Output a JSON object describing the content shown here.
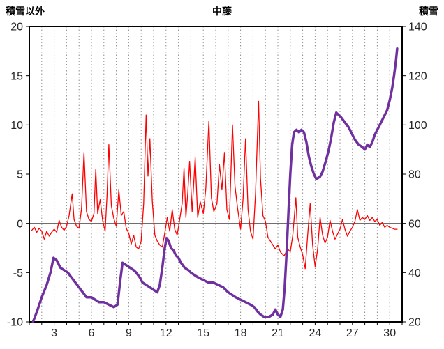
{
  "header": {
    "left_axis_title": "積雪以外",
    "chart_title": "中藤",
    "right_axis_title": "積雪"
  },
  "colors": {
    "temp_series": "#ff0000",
    "snow_series": "#7030a0",
    "frame": "#000000",
    "gridline": "#8c8c8c",
    "zero_line": "#595959",
    "tick_text": "#262626"
  },
  "chart_data": {
    "type": "line",
    "title": "中藤",
    "xlabel": "",
    "left_axis": {
      "label": "積雪以外",
      "min": -10,
      "max": 20,
      "ticks": [
        20,
        15,
        10,
        5,
        0,
        -5,
        -10
      ]
    },
    "right_axis": {
      "label": "積雪",
      "min": 20,
      "max": 140,
      "ticks": [
        140,
        120,
        100,
        80,
        60,
        40,
        20
      ]
    },
    "x_axis": {
      "min": 1,
      "max": 31,
      "gridline_interval": 1,
      "tick_labels": [
        3,
        6,
        9,
        12,
        15,
        18,
        21,
        24,
        27,
        30
      ]
    },
    "zero_line": true,
    "legend": "none",
    "series": [
      {
        "name": "積雪以外",
        "axis": "left",
        "color": "#ff0000",
        "width": 1.3,
        "points": [
          [
            1.2,
            -0.7
          ],
          [
            1.4,
            -0.4
          ],
          [
            1.6,
            -0.9
          ],
          [
            1.8,
            -0.5
          ],
          [
            2.0,
            -0.8
          ],
          [
            2.2,
            -1.6
          ],
          [
            2.4,
            -0.8
          ],
          [
            2.6,
            -1.3
          ],
          [
            2.8,
            -0.9
          ],
          [
            3.0,
            -0.6
          ],
          [
            3.2,
            -0.9
          ],
          [
            3.4,
            0.3
          ],
          [
            3.6,
            -0.4
          ],
          [
            3.8,
            -0.7
          ],
          [
            4.0,
            -0.3
          ],
          [
            4.2,
            0.8
          ],
          [
            4.45,
            3.0
          ],
          [
            4.6,
            0.4
          ],
          [
            4.8,
            -0.3
          ],
          [
            5.0,
            -0.5
          ],
          [
            5.2,
            1.5
          ],
          [
            5.4,
            7.2
          ],
          [
            5.6,
            1.2
          ],
          [
            5.8,
            0.4
          ],
          [
            6.0,
            0.2
          ],
          [
            6.2,
            1.0
          ],
          [
            6.35,
            5.5
          ],
          [
            6.5,
            1.0
          ],
          [
            6.7,
            2.4
          ],
          [
            6.9,
            0.3
          ],
          [
            7.1,
            -0.8
          ],
          [
            7.25,
            2.8
          ],
          [
            7.4,
            8.0
          ],
          [
            7.6,
            1.8
          ],
          [
            7.8,
            0.5
          ],
          [
            8.0,
            -0.3
          ],
          [
            8.2,
            3.4
          ],
          [
            8.4,
            0.8
          ],
          [
            8.6,
            1.2
          ],
          [
            8.8,
            -0.5
          ],
          [
            9.0,
            -1.0
          ],
          [
            9.2,
            -2.1
          ],
          [
            9.4,
            -1.2
          ],
          [
            9.6,
            -2.4
          ],
          [
            9.8,
            -2.6
          ],
          [
            10.0,
            -1.8
          ],
          [
            10.2,
            2.0
          ],
          [
            10.4,
            11.0
          ],
          [
            10.55,
            4.8
          ],
          [
            10.7,
            8.6
          ],
          [
            10.9,
            2.2
          ],
          [
            11.1,
            -1.2
          ],
          [
            11.3,
            -1.8
          ],
          [
            11.5,
            -2.2
          ],
          [
            11.7,
            -2.4
          ],
          [
            11.9,
            -1.0
          ],
          [
            12.1,
            0.6
          ],
          [
            12.3,
            -0.8
          ],
          [
            12.5,
            1.4
          ],
          [
            12.7,
            -0.6
          ],
          [
            12.9,
            -1.2
          ],
          [
            13.1,
            0.4
          ],
          [
            13.3,
            2.0
          ],
          [
            13.45,
            5.6
          ],
          [
            13.6,
            0.6
          ],
          [
            13.75,
            3.0
          ],
          [
            13.9,
            6.3
          ],
          [
            14.1,
            1.2
          ],
          [
            14.35,
            6.7
          ],
          [
            14.55,
            0.6
          ],
          [
            14.75,
            2.2
          ],
          [
            15.0,
            1.0
          ],
          [
            15.2,
            3.5
          ],
          [
            15.45,
            10.4
          ],
          [
            15.65,
            2.6
          ],
          [
            15.85,
            1.2
          ],
          [
            16.1,
            2.0
          ],
          [
            16.3,
            6.0
          ],
          [
            16.5,
            3.4
          ],
          [
            16.7,
            7.2
          ],
          [
            16.9,
            1.4
          ],
          [
            17.1,
            0.4
          ],
          [
            17.35,
            10.0
          ],
          [
            17.55,
            3.8
          ],
          [
            17.75,
            1.6
          ],
          [
            18.0,
            -0.6
          ],
          [
            18.2,
            2.5
          ],
          [
            18.4,
            8.6
          ],
          [
            18.6,
            1.4
          ],
          [
            18.8,
            -0.8
          ],
          [
            19.0,
            -1.6
          ],
          [
            19.2,
            3.0
          ],
          [
            19.45,
            12.4
          ],
          [
            19.6,
            4.6
          ],
          [
            19.8,
            0.8
          ],
          [
            20.0,
            0.2
          ],
          [
            20.2,
            -1.4
          ],
          [
            20.5,
            -2.0
          ],
          [
            20.8,
            -2.6
          ],
          [
            21.0,
            -2.2
          ],
          [
            21.2,
            -2.9
          ],
          [
            21.5,
            -3.3
          ],
          [
            21.8,
            -2.6
          ],
          [
            22.0,
            -2.9
          ],
          [
            22.2,
            -1.2
          ],
          [
            22.45,
            2.6
          ],
          [
            22.6,
            -1.4
          ],
          [
            22.8,
            -2.4
          ],
          [
            23.0,
            -3.2
          ],
          [
            23.2,
            -4.6
          ],
          [
            23.4,
            -1.2
          ],
          [
            23.6,
            2.0
          ],
          [
            23.8,
            -2.2
          ],
          [
            24.0,
            -4.4
          ],
          [
            24.2,
            -2.6
          ],
          [
            24.4,
            0.6
          ],
          [
            24.6,
            -1.2
          ],
          [
            24.8,
            -2.0
          ],
          [
            25.0,
            -1.4
          ],
          [
            25.2,
            0.3
          ],
          [
            25.4,
            -0.8
          ],
          [
            25.6,
            -1.6
          ],
          [
            25.8,
            -1.1
          ],
          [
            26.0,
            -0.6
          ],
          [
            26.2,
            0.4
          ],
          [
            26.4,
            -0.6
          ],
          [
            26.6,
            -1.3
          ],
          [
            26.8,
            -0.8
          ],
          [
            27.0,
            -0.4
          ],
          [
            27.2,
            0.2
          ],
          [
            27.4,
            1.4
          ],
          [
            27.6,
            0.3
          ],
          [
            27.8,
            0.6
          ],
          [
            28.0,
            0.4
          ],
          [
            28.2,
            0.8
          ],
          [
            28.4,
            0.3
          ],
          [
            28.6,
            0.6
          ],
          [
            28.8,
            0.2
          ],
          [
            29.0,
            0.4
          ],
          [
            29.2,
            -0.2
          ],
          [
            29.4,
            0.1
          ],
          [
            29.6,
            -0.4
          ],
          [
            29.8,
            -0.2
          ],
          [
            30.0,
            -0.4
          ],
          [
            30.2,
            -0.5
          ],
          [
            30.4,
            -0.6
          ],
          [
            30.6,
            -0.6
          ]
        ]
      },
      {
        "name": "積雪",
        "axis": "right",
        "color": "#7030a0",
        "width": 3.5,
        "points": [
          [
            1.3,
            20
          ],
          [
            1.6,
            24
          ],
          [
            2.0,
            30
          ],
          [
            2.4,
            35
          ],
          [
            2.7,
            40
          ],
          [
            2.95,
            46
          ],
          [
            3.2,
            45
          ],
          [
            3.5,
            42
          ],
          [
            3.8,
            41
          ],
          [
            4.1,
            40
          ],
          [
            4.4,
            38
          ],
          [
            4.7,
            36
          ],
          [
            5.0,
            34
          ],
          [
            5.3,
            32
          ],
          [
            5.6,
            30
          ],
          [
            6.0,
            30
          ],
          [
            6.3,
            29
          ],
          [
            6.6,
            28
          ],
          [
            7.0,
            28
          ],
          [
            7.4,
            27
          ],
          [
            7.8,
            26
          ],
          [
            8.1,
            27
          ],
          [
            8.3,
            36
          ],
          [
            8.5,
            44
          ],
          [
            8.8,
            43
          ],
          [
            9.1,
            42
          ],
          [
            9.4,
            41
          ],
          [
            9.6,
            40
          ],
          [
            9.9,
            38
          ],
          [
            10.1,
            36
          ],
          [
            10.4,
            35
          ],
          [
            10.7,
            34
          ],
          [
            11.0,
            33
          ],
          [
            11.3,
            32
          ],
          [
            11.5,
            35
          ],
          [
            11.7,
            42
          ],
          [
            11.9,
            50
          ],
          [
            12.05,
            54
          ],
          [
            12.2,
            53
          ],
          [
            12.4,
            50
          ],
          [
            12.6,
            49
          ],
          [
            12.8,
            47
          ],
          [
            13.0,
            46
          ],
          [
            13.2,
            44
          ],
          [
            13.5,
            42
          ],
          [
            13.8,
            41
          ],
          [
            14.0,
            40
          ],
          [
            14.3,
            39
          ],
          [
            14.6,
            38
          ],
          [
            15.0,
            37
          ],
          [
            15.4,
            36
          ],
          [
            15.8,
            36
          ],
          [
            16.2,
            35
          ],
          [
            16.6,
            34
          ],
          [
            17.0,
            32
          ],
          [
            17.3,
            31
          ],
          [
            17.6,
            30
          ],
          [
            18.0,
            29
          ],
          [
            18.4,
            28
          ],
          [
            18.8,
            27
          ],
          [
            19.1,
            26
          ],
          [
            19.4,
            24
          ],
          [
            19.6,
            23
          ],
          [
            19.9,
            22
          ],
          [
            20.3,
            22
          ],
          [
            20.6,
            23
          ],
          [
            20.8,
            25
          ],
          [
            21.0,
            23
          ],
          [
            21.2,
            22
          ],
          [
            21.4,
            25
          ],
          [
            21.55,
            34
          ],
          [
            21.7,
            48
          ],
          [
            21.85,
            64
          ],
          [
            22.0,
            80
          ],
          [
            22.15,
            92
          ],
          [
            22.3,
            97
          ],
          [
            22.5,
            98
          ],
          [
            22.7,
            97
          ],
          [
            22.9,
            98
          ],
          [
            23.1,
            97
          ],
          [
            23.3,
            93
          ],
          [
            23.5,
            87
          ],
          [
            23.7,
            83
          ],
          [
            23.9,
            80
          ],
          [
            24.1,
            78
          ],
          [
            24.4,
            79
          ],
          [
            24.6,
            81
          ],
          [
            24.9,
            86
          ],
          [
            25.1,
            90
          ],
          [
            25.3,
            95
          ],
          [
            25.5,
            101
          ],
          [
            25.7,
            105
          ],
          [
            25.9,
            104
          ],
          [
            26.1,
            103
          ],
          [
            26.4,
            101
          ],
          [
            26.7,
            99
          ],
          [
            27.0,
            96
          ],
          [
            27.2,
            94
          ],
          [
            27.5,
            92
          ],
          [
            27.8,
            91
          ],
          [
            28.0,
            90
          ],
          [
            28.2,
            92
          ],
          [
            28.4,
            91
          ],
          [
            28.6,
            93
          ],
          [
            28.8,
            96
          ],
          [
            29.0,
            98
          ],
          [
            29.2,
            100
          ],
          [
            29.4,
            102
          ],
          [
            29.6,
            104
          ],
          [
            29.8,
            106
          ],
          [
            30.0,
            110
          ],
          [
            30.2,
            115
          ],
          [
            30.35,
            120
          ],
          [
            30.5,
            126
          ],
          [
            30.6,
            131
          ]
        ]
      }
    ]
  }
}
